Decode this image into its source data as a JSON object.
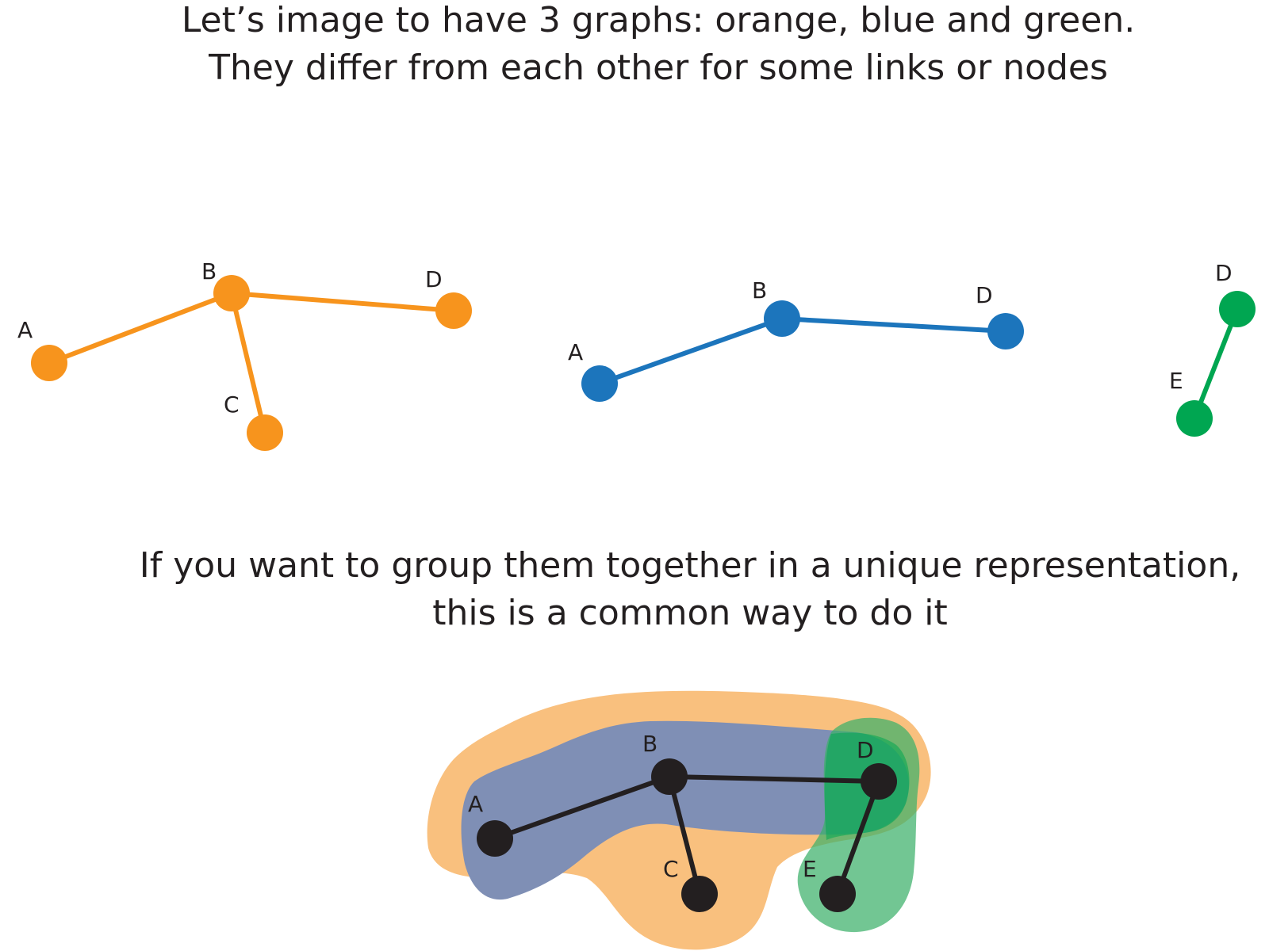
{
  "captions": {
    "top": {
      "line1": "Let’s image to have 3 graphs: orange, blue and green.",
      "line2": "They differ from each other for some links or nodes"
    },
    "bottom": {
      "line1": "If you want to group them together in a unique representation,",
      "line2": "this is a common way to do it"
    }
  },
  "colors": {
    "orange": "#f7941d",
    "blue": "#1c75bc",
    "green": "#00a651",
    "combined": "#231f20",
    "orange_fill": "#f9c07e",
    "blue_fill": "#7f8fb5",
    "green_fill": "#3cb06a"
  },
  "graphs": {
    "orange": {
      "nodes": {
        "A": "A",
        "B": "B",
        "C": "C",
        "D": "D"
      },
      "edges": [
        [
          "A",
          "B"
        ],
        [
          "B",
          "D"
        ],
        [
          "B",
          "C"
        ]
      ]
    },
    "blue": {
      "nodes": {
        "A": "A",
        "B": "B",
        "D": "D"
      },
      "edges": [
        [
          "A",
          "B"
        ],
        [
          "B",
          "D"
        ]
      ]
    },
    "green": {
      "nodes": {
        "D": "D",
        "E": "E"
      },
      "edges": [
        [
          "D",
          "E"
        ]
      ]
    },
    "combined": {
      "nodes": {
        "A": "A",
        "B": "B",
        "C": "C",
        "D": "D",
        "E": "E"
      },
      "edges": [
        [
          "A",
          "B"
        ],
        [
          "B",
          "D"
        ],
        [
          "B",
          "C"
        ],
        [
          "D",
          "E"
        ]
      ]
    }
  }
}
